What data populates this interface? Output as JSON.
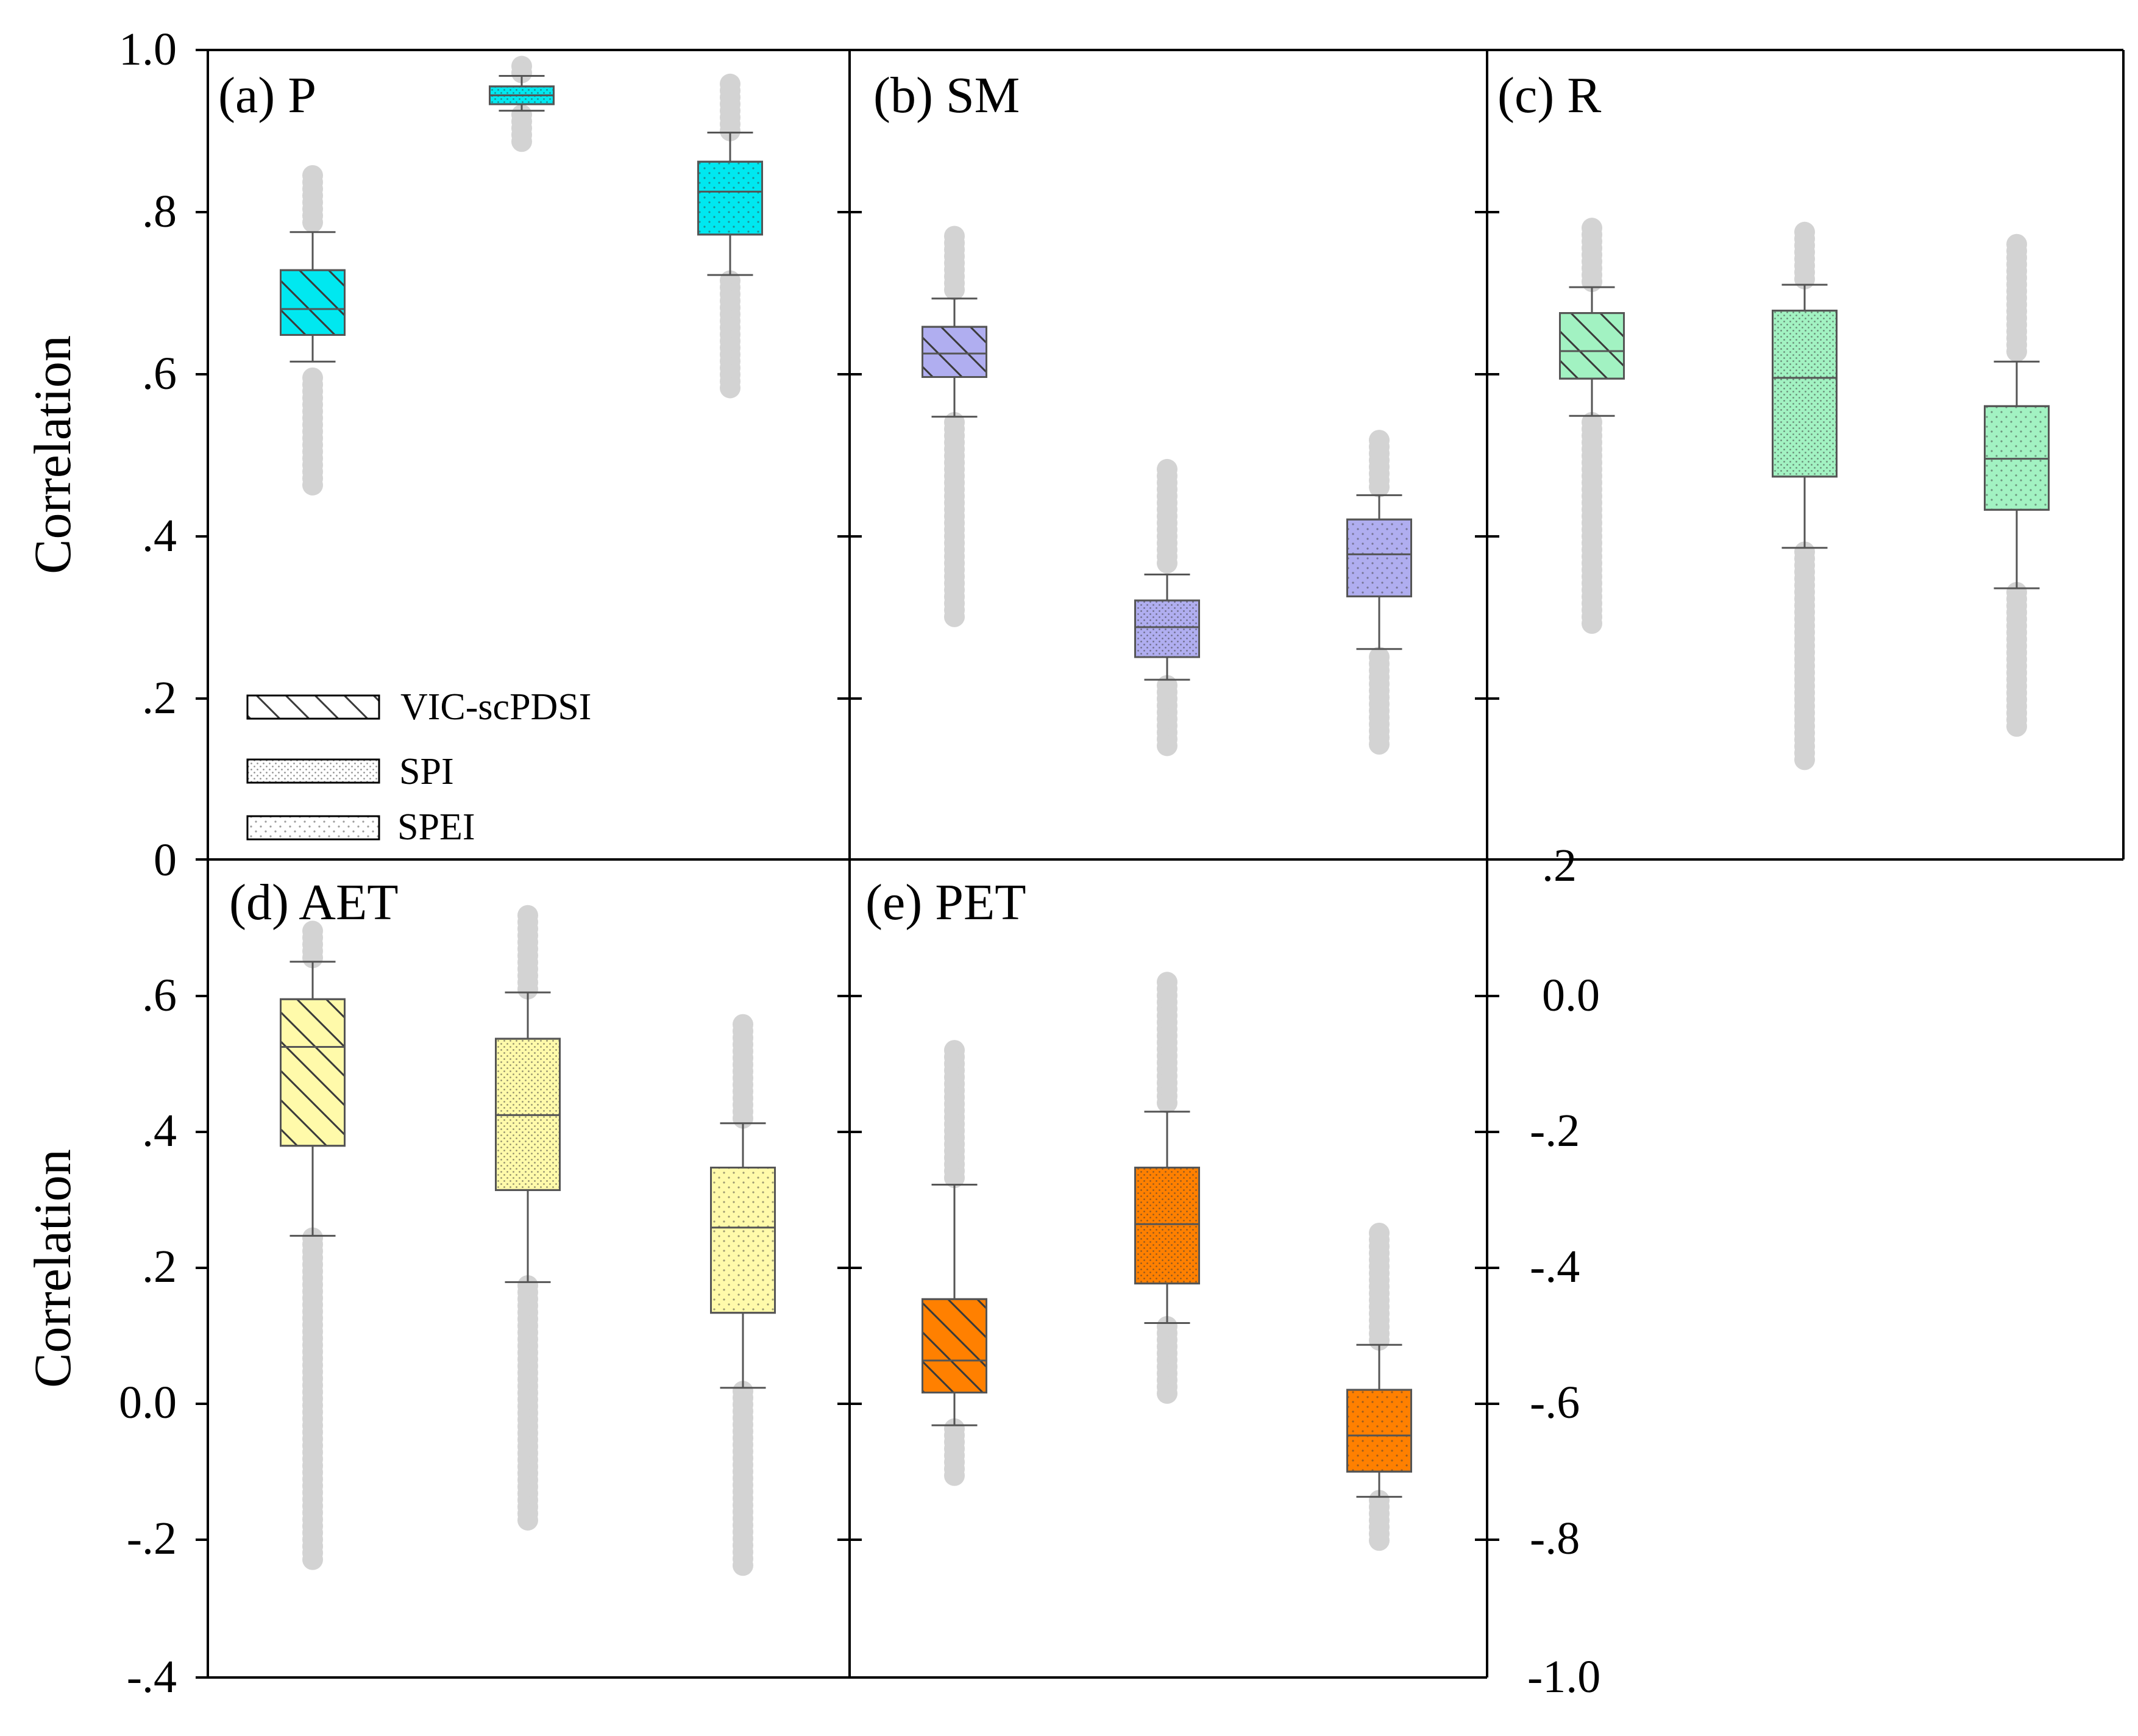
{
  "chart_data": {
    "type": "box",
    "ylabel": "Correlation",
    "legend": {
      "placement": "panel-a-lower-left",
      "entries": [
        {
          "label": "VIC-scPDSI",
          "pattern": "hatch"
        },
        {
          "label": "SPI",
          "pattern": "dots-dense"
        },
        {
          "label": "SPEI",
          "pattern": "dots-sparse"
        }
      ]
    },
    "series_names": [
      "VIC-scPDSI",
      "SPI",
      "SPEI"
    ],
    "axes": [
      {
        "id": "top",
        "ylim": [
          0,
          1.0
        ],
        "ticks": [
          "0",
          ".2",
          ".4",
          ".6",
          ".8",
          "1.0"
        ]
      },
      {
        "id": "bottom_left",
        "ylim": [
          -0.4,
          0.8
        ],
        "ticks": [
          "-.4",
          "-.2",
          "0.0",
          ".2",
          ".4",
          ".6"
        ]
      },
      {
        "id": "bottom_right",
        "ylim": [
          -1.0,
          0.2
        ],
        "ticks": [
          "-1.0",
          "-.8",
          "-.6",
          "-.4",
          "-.2",
          "0.0",
          ".2"
        ]
      }
    ],
    "panels": [
      {
        "title": "(a) P",
        "color": "#00e8f0",
        "boxes": [
          {
            "series": "VIC-scPDSI",
            "min": 0.615,
            "q1": 0.648,
            "median": 0.68,
            "q3": 0.728,
            "max": 0.775,
            "outliers_low": [
              0.46,
              0.595
            ],
            "outliers_high": [
              0.78,
              0.845
            ]
          },
          {
            "series": "SPI",
            "min": 0.925,
            "q1": 0.933,
            "median": 0.944,
            "q3": 0.955,
            "max": 0.968,
            "outliers_low": [
              0.88,
              0.92
            ],
            "outliers_high": [
              0.97,
              0.98
            ]
          },
          {
            "series": "SPEI",
            "min": 0.722,
            "q1": 0.772,
            "median": 0.825,
            "q3": 0.862,
            "max": 0.898,
            "outliers_low": [
              0.578,
              0.715
            ],
            "outliers_high": [
              0.9,
              0.958
            ]
          }
        ]
      },
      {
        "title": "(b) SM",
        "color": "#b0aef0",
        "boxes": [
          {
            "series": "VIC-scPDSI",
            "min": 0.547,
            "q1": 0.596,
            "median": 0.625,
            "q3": 0.658,
            "max": 0.693,
            "outliers_low": [
              0.295,
              0.54
            ],
            "outliers_high": [
              0.7,
              0.77
            ]
          },
          {
            "series": "SPI",
            "min": 0.222,
            "q1": 0.25,
            "median": 0.287,
            "q3": 0.32,
            "max": 0.352,
            "outliers_low": [
              0.137,
              0.215
            ],
            "outliers_high": [
              0.36,
              0.482
            ]
          },
          {
            "series": "SPEI",
            "min": 0.26,
            "q1": 0.325,
            "median": 0.377,
            "q3": 0.42,
            "max": 0.45,
            "outliers_low": [
              0.137,
              0.25
            ],
            "outliers_high": [
              0.455,
              0.518
            ]
          }
        ]
      },
      {
        "title": "(c) R",
        "color": "#a2f2c2",
        "boxes": [
          {
            "series": "VIC-scPDSI",
            "min": 0.548,
            "q1": 0.594,
            "median": 0.628,
            "q3": 0.675,
            "max": 0.707,
            "outliers_low": [
              0.29,
              0.54
            ],
            "outliers_high": [
              0.712,
              0.78
            ]
          },
          {
            "series": "SPI",
            "min": 0.385,
            "q1": 0.473,
            "median": 0.595,
            "q3": 0.678,
            "max": 0.71,
            "outliers_low": [
              0.123,
              0.38
            ],
            "outliers_high": [
              0.715,
              0.775
            ]
          },
          {
            "series": "SPEI",
            "min": 0.335,
            "q1": 0.432,
            "median": 0.495,
            "q3": 0.56,
            "max": 0.615,
            "outliers_low": [
              0.157,
              0.33
            ],
            "outliers_high": [
              0.62,
              0.76
            ]
          }
        ]
      },
      {
        "title": "(d) AET",
        "color": "#fffaaa",
        "boxes": [
          {
            "series": "VIC-scPDSI",
            "min": 0.248,
            "q1": 0.38,
            "median": 0.525,
            "q3": 0.595,
            "max": 0.65,
            "outliers_low": [
              -0.228,
              0.245
            ],
            "outliers_high": [
              0.655,
              0.695
            ]
          },
          {
            "series": "SPI",
            "min": 0.18,
            "q1": 0.315,
            "median": 0.425,
            "q3": 0.537,
            "max": 0.605,
            "outliers_low": [
              -0.173,
              0.175
            ],
            "outliers_high": [
              0.61,
              0.718
            ]
          },
          {
            "series": "SPEI",
            "min": 0.025,
            "q1": 0.135,
            "median": 0.26,
            "q3": 0.348,
            "max": 0.413,
            "outliers_low": [
              -0.245,
              0.02
            ],
            "outliers_high": [
              0.42,
              0.558
            ]
          }
        ]
      },
      {
        "title": "(e) PET",
        "color": "#ff8000",
        "boxes": [
          {
            "series": "VIC-scPDSI",
            "min": -0.03,
            "q1": 0.018,
            "median": 0.065,
            "q3": 0.155,
            "max": 0.323,
            "outliers_low": [
              -0.108,
              -0.035
            ],
            "outliers_high": [
              0.33,
              0.52
            ]
          },
          {
            "series": "SPI",
            "min": 0.12,
            "q1": 0.178,
            "median": 0.265,
            "q3": 0.348,
            "max": 0.43,
            "outliers_low": [
              0.015,
              0.115
            ],
            "outliers_high": [
              0.435,
              0.62
            ]
          },
          {
            "series": "SPEI",
            "min": -0.135,
            "q1": -0.098,
            "median": -0.045,
            "q3": 0.022,
            "max": 0.088,
            "outliers_low": [
              -0.208,
              -0.14
            ],
            "outliers_high": [
              0.093,
              0.252
            ]
          }
        ]
      }
    ]
  }
}
